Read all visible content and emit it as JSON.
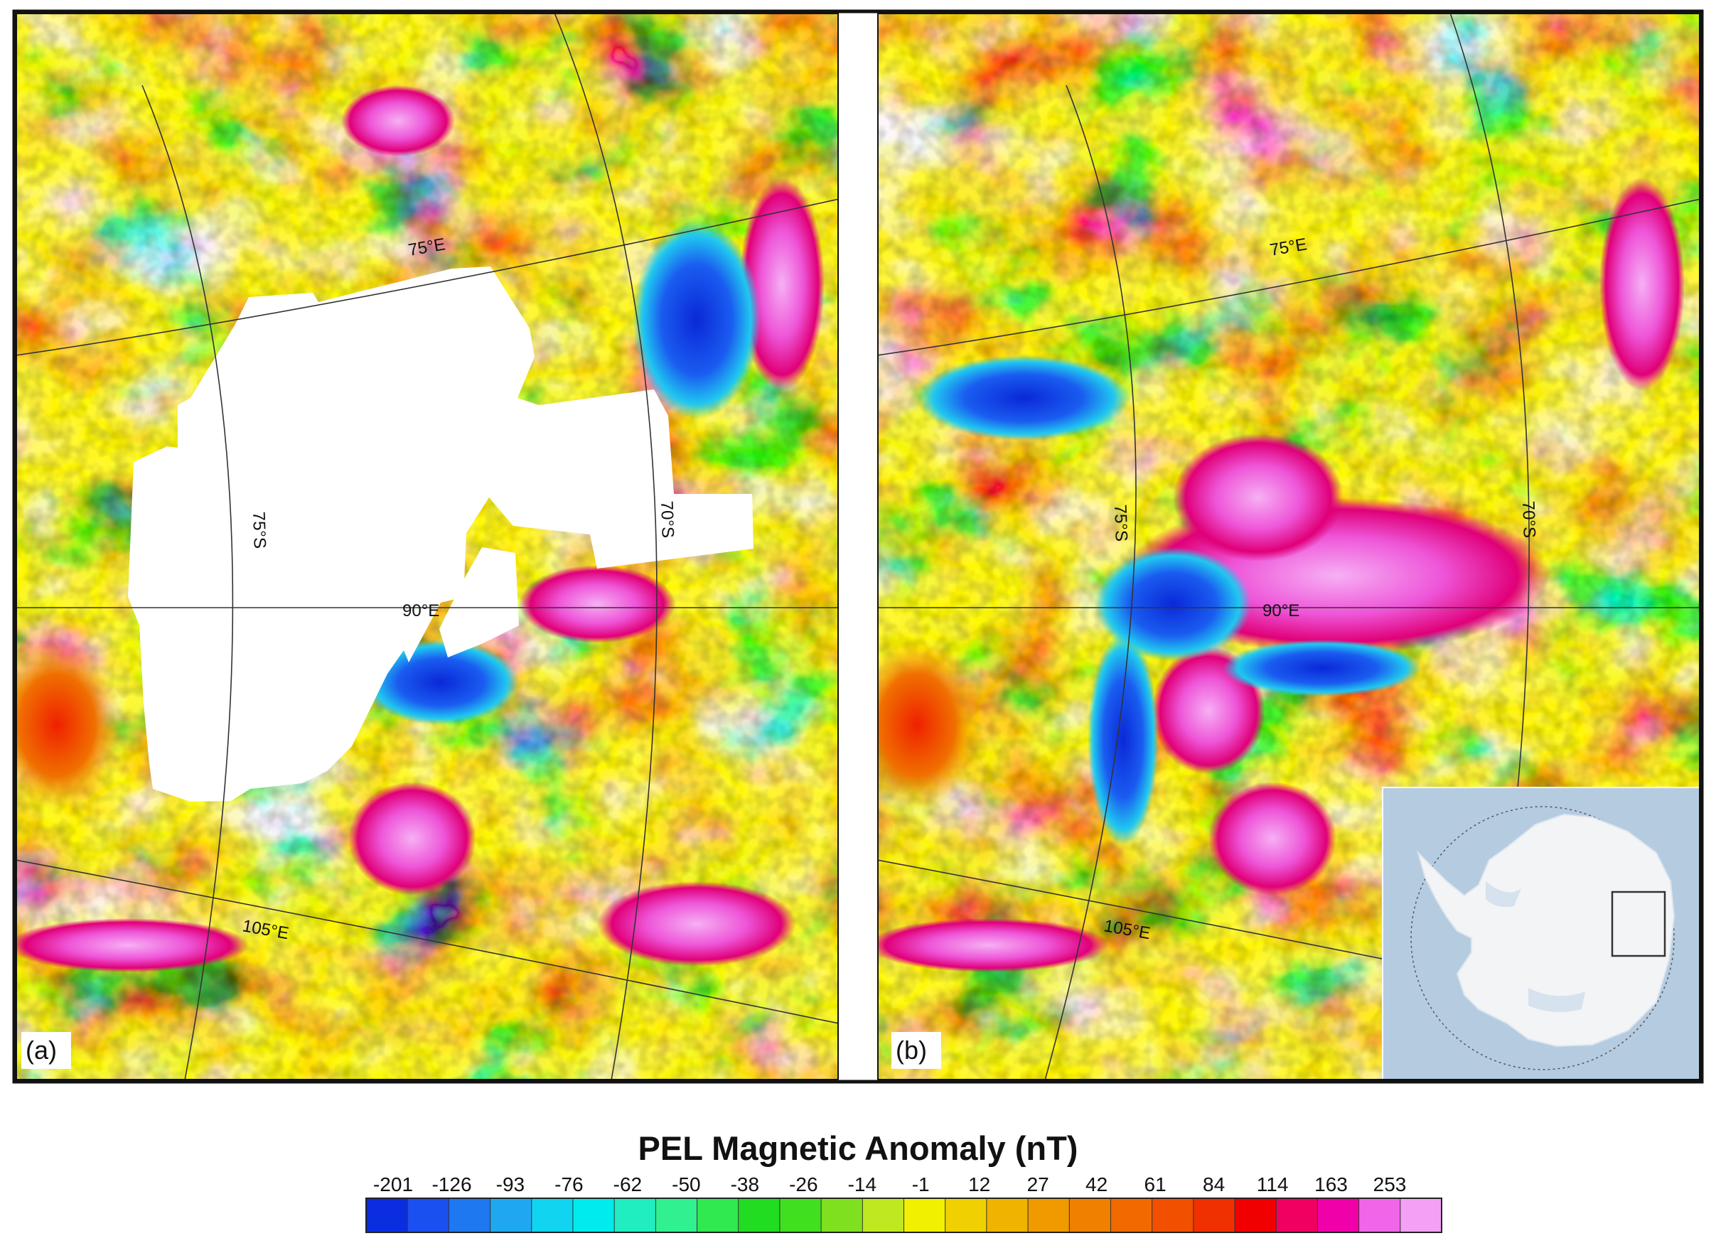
{
  "panels": [
    {
      "id": "a",
      "label": "(a)",
      "has_data_gap": true,
      "grid_labels": {
        "lon_75": "75°E",
        "lat_75": "75°S",
        "lat_70": "70°S",
        "lon_90": "90°E",
        "lon_105": "105°E"
      }
    },
    {
      "id": "b",
      "label": "(b)",
      "has_data_gap": false,
      "grid_labels": {
        "lon_75": "75°E",
        "lat_75": "75°S",
        "lat_70": "70°S",
        "lon_90": "90°E",
        "lon_105": "105°E"
      }
    }
  ],
  "inset": {
    "description_icon": "antarctica-locator-icon",
    "ocean_color": "#b5cce0",
    "land_color": "#f3f4f6"
  },
  "legend": {
    "title": "PEL Magnetic Anomaly (nT)",
    "ticks": [
      "-201",
      "-126",
      "-93",
      "-76",
      "-62",
      "-50",
      "-38",
      "-26",
      "-14",
      "-1",
      "12",
      "27",
      "42",
      "61",
      "84",
      "114",
      "163",
      "253"
    ],
    "colors": [
      "#0a2de0",
      "#1a4ff0",
      "#1e78f0",
      "#1fa8f0",
      "#10d4f0",
      "#00ecec",
      "#20eec0",
      "#30f090",
      "#30e850",
      "#22dc22",
      "#40e020",
      "#80e020",
      "#c0e820",
      "#f0f000",
      "#f0d000",
      "#f0b400",
      "#f09a00",
      "#f08000",
      "#f06a00",
      "#f05000",
      "#f03000",
      "#f00000",
      "#f00060",
      "#f000a8",
      "#f066e8",
      "#f4a0f4"
    ]
  }
}
